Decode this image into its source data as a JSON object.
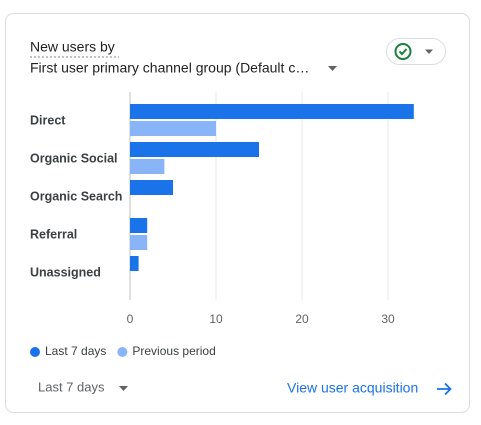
{
  "header": {
    "title": "New users by",
    "dimension": "First user primary channel group (Default c…"
  },
  "chart_data": {
    "type": "bar",
    "orientation": "horizontal",
    "categories": [
      "Direct",
      "Organic Social",
      "Organic Search",
      "Referral",
      "Unassigned"
    ],
    "series": [
      {
        "name": "Last 7 days",
        "color": "#1a73e8",
        "values": [
          33,
          15,
          5,
          2,
          1
        ]
      },
      {
        "name": "Previous period",
        "color": "#8ab4f8",
        "values": [
          10,
          4,
          0,
          2,
          0
        ]
      }
    ],
    "xlim": [
      0,
      33
    ],
    "xticks": [
      0,
      10,
      20,
      30
    ],
    "grid": true,
    "legend": "bottom-left"
  },
  "footer": {
    "date_range": "Last 7 days",
    "link": "View user acquisition"
  }
}
